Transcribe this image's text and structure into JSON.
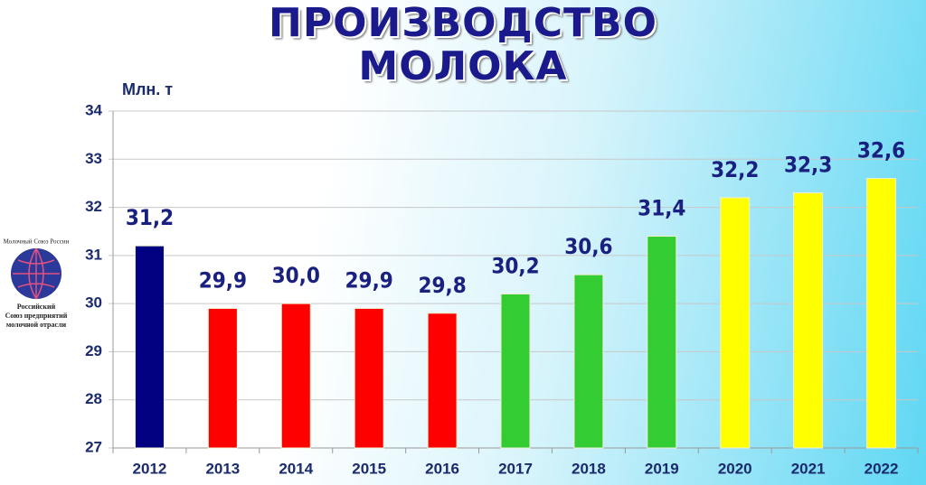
{
  "chart_data": {
    "type": "bar",
    "title": "ПРОИЗВОДСТВО МОЛОКА",
    "y_axis_label": "Млн. т",
    "categories": [
      "2012",
      "2013",
      "2014",
      "2015",
      "2016",
      "2017",
      "2018",
      "2019",
      "2020",
      "2021",
      "2022"
    ],
    "values": [
      31.2,
      29.9,
      30.0,
      29.9,
      29.8,
      30.2,
      30.6,
      31.4,
      32.2,
      32.3,
      32.6
    ],
    "value_labels": [
      "31,2",
      "29,9",
      "30,0",
      "29,9",
      "29,8",
      "30,2",
      "30,6",
      "31,4",
      "32,2",
      "32,3",
      "32,6"
    ],
    "colors": [
      "#000080",
      "#ff0000",
      "#ff0000",
      "#ff0000",
      "#ff0000",
      "#33cc33",
      "#33cc33",
      "#33cc33",
      "#ffff00",
      "#ffff00",
      "#ffff00"
    ],
    "ylim": [
      27,
      34
    ],
    "yticks": [
      27,
      28,
      29,
      30,
      31,
      32,
      33,
      34
    ],
    "grid": true
  },
  "logo": {
    "arc_text": "Молочный Союз России",
    "caption": [
      "Российский",
      "Союз предприятий",
      "молочной отрасли"
    ]
  }
}
